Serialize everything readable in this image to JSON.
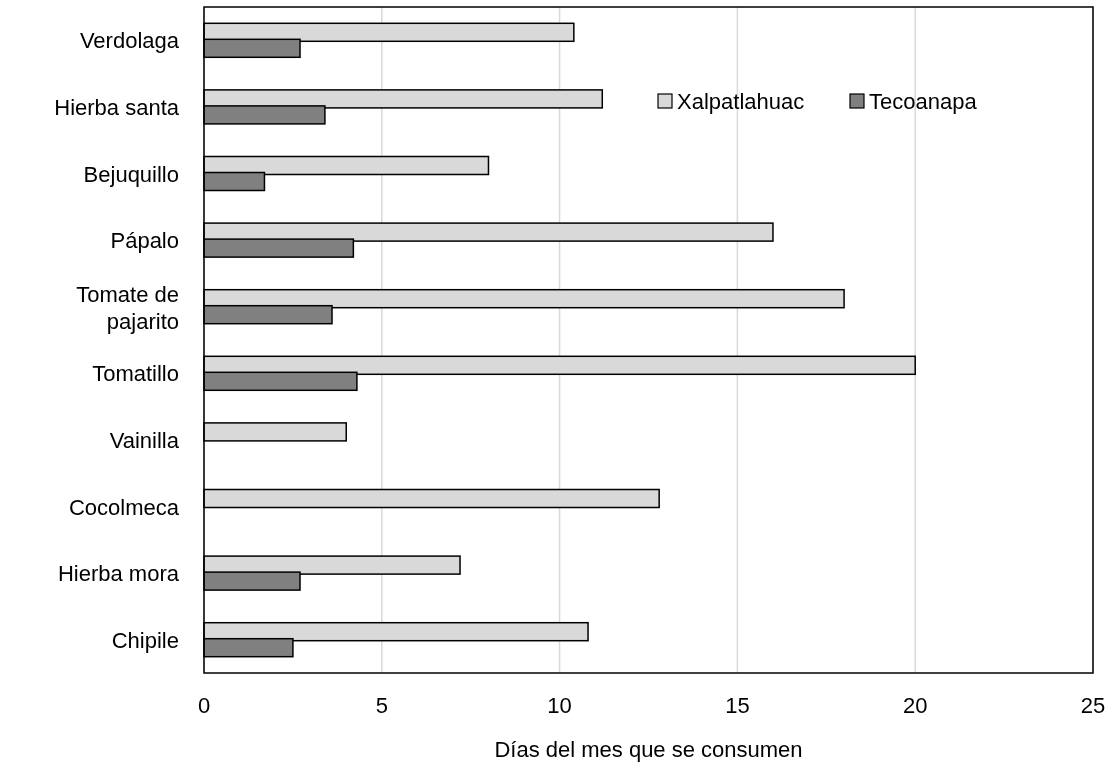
{
  "chart_data": {
    "type": "bar",
    "orientation": "horizontal",
    "xlabel": "Días del mes que se consumen",
    "categories": [
      "Verdolaga",
      "Hierba santa",
      "Bejuquillo",
      "Pápalo",
      "Tomate de pajarito",
      "Tomatillo",
      "Vainilla",
      "Cocolmeca",
      "Hierba mora",
      "Chipile"
    ],
    "series": [
      {
        "name": "Xalpatlahuac",
        "color": "#d9d9d9",
        "values": [
          10.4,
          11.2,
          8.0,
          16.0,
          18.0,
          20.0,
          4.0,
          12.8,
          7.2,
          10.8
        ]
      },
      {
        "name": "Tecoanapa",
        "color": "#808080",
        "values": [
          2.7,
          3.4,
          1.7,
          4.2,
          3.6,
          4.3,
          null,
          null,
          2.7,
          2.5
        ]
      }
    ],
    "xlim": [
      0,
      25
    ],
    "xticks": [
      0,
      5,
      10,
      15,
      20,
      25
    ],
    "grid": "x",
    "legend": "top right"
  }
}
